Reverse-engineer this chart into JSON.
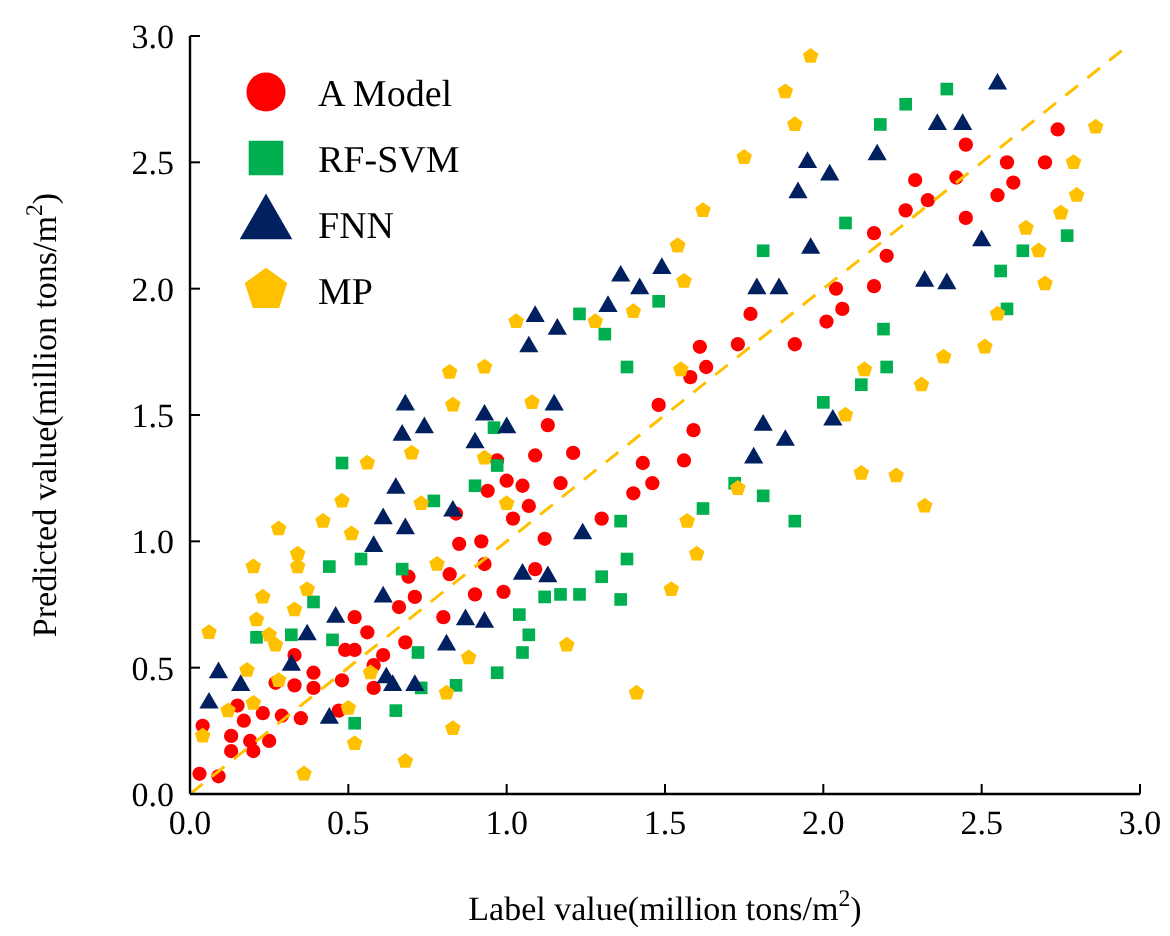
{
  "chart_data": {
    "type": "scatter",
    "xlabel": "Label value(million tons/m$^{2}$)",
    "ylabel": "Predicted value(million tons/m$^{2}$)",
    "xlim": [
      0,
      3
    ],
    "ylim": [
      0,
      3
    ],
    "xticks": [
      {
        "value": 0,
        "label": "0.0"
      },
      {
        "value": 0.5,
        "label": "0.5"
      },
      {
        "value": 1,
        "label": "1.0"
      },
      {
        "value": 1.5,
        "label": "1.5"
      },
      {
        "value": 2,
        "label": "2.0"
      },
      {
        "value": 2.5,
        "label": "2.5"
      },
      {
        "value": 3,
        "label": "3.0"
      }
    ],
    "yticks": [
      {
        "value": 0,
        "label": "0.0"
      },
      {
        "value": 0.5,
        "label": "0.5"
      },
      {
        "value": 1,
        "label": "1.0"
      },
      {
        "value": 1.5,
        "label": "1.5"
      },
      {
        "value": 2,
        "label": "2.0"
      },
      {
        "value": 2.5,
        "label": "2.5"
      },
      {
        "value": 3,
        "label": "3.0"
      }
    ],
    "grid": false,
    "legend": "top left",
    "series": [
      {
        "name": "A Model",
        "color": "#ff0000",
        "marker": "circle",
        "x": [
          0.03,
          0.09,
          0.04,
          0.13,
          0.13,
          0.19,
          0.2,
          0.25,
          0.15,
          0.17,
          0.23,
          0.29,
          0.35,
          0.27,
          0.33,
          0.39,
          0.39,
          0.33,
          0.48,
          0.47,
          0.58,
          0.58,
          0.61,
          0.49,
          0.52,
          0.52,
          0.56,
          0.68,
          0.66,
          0.71,
          0.69,
          0.8,
          0.82,
          0.9,
          0.85,
          0.92,
          0.93,
          0.84,
          0.99,
          1.09,
          1.02,
          1.07,
          0.94,
          1.0,
          1.05,
          0.97,
          1.09,
          1.13,
          1.21,
          1.17,
          1.12,
          1.3,
          1.4,
          1.46,
          1.43,
          1.48,
          1.58,
          1.63,
          1.61,
          1.73,
          1.77,
          1.91,
          2.01,
          2.04,
          2.06,
          2.16,
          2.16,
          2.2,
          2.26,
          2.29,
          2.33,
          2.42,
          2.45,
          2.45,
          2.55,
          2.58,
          2.6,
          2.7,
          2.74,
          1.59,
          1.56
        ],
        "values": [
          0.08,
          0.07,
          0.27,
          0.23,
          0.17,
          0.21,
          0.17,
          0.21,
          0.35,
          0.29,
          0.32,
          0.31,
          0.3,
          0.44,
          0.43,
          0.48,
          0.42,
          0.55,
          0.45,
          0.33,
          0.42,
          0.51,
          0.55,
          0.57,
          0.57,
          0.7,
          0.64,
          0.6,
          0.74,
          0.78,
          0.86,
          0.7,
          0.87,
          0.79,
          0.99,
          1.0,
          0.91,
          1.11,
          0.8,
          0.89,
          1.09,
          1.14,
          1.2,
          1.24,
          1.22,
          1.32,
          1.34,
          1.46,
          1.35,
          1.23,
          1.01,
          1.09,
          1.19,
          1.23,
          1.31,
          1.54,
          1.65,
          1.69,
          1.77,
          1.78,
          1.9,
          1.78,
          1.87,
          2.0,
          1.92,
          2.01,
          2.22,
          2.13,
          2.31,
          2.43,
          2.35,
          2.44,
          2.57,
          2.28,
          2.37,
          2.5,
          2.42,
          2.5,
          2.63,
          1.44,
          1.32
        ]
      },
      {
        "name": "RF-SVM",
        "color": "#00b050",
        "marker": "square",
        "x": [
          1.23,
          1.31,
          1.48,
          1.38,
          0.48,
          0.96,
          0.97,
          0.9,
          0.77,
          0.44,
          0.54,
          0.67,
          0.39,
          0.32,
          0.21,
          0.45,
          0.52,
          0.65,
          0.72,
          0.73,
          0.84,
          0.97,
          1.05,
          1.07,
          1.04,
          1.12,
          1.17,
          1.23,
          1.3,
          1.36,
          1.38,
          1.36,
          2.0,
          1.72,
          1.62,
          1.81,
          1.91,
          2.39,
          2.26,
          2.18,
          2.07,
          1.81,
          2.77,
          2.63,
          2.56,
          2.58,
          2.19,
          2.2,
          2.12
        ],
        "values": [
          1.9,
          1.82,
          1.95,
          1.69,
          1.31,
          1.45,
          1.3,
          1.22,
          1.16,
          0.9,
          0.93,
          0.89,
          0.76,
          0.63,
          0.62,
          0.61,
          0.28,
          0.33,
          0.56,
          0.42,
          0.43,
          0.48,
          0.56,
          0.63,
          0.71,
          0.78,
          0.79,
          0.79,
          0.86,
          0.77,
          0.93,
          1.08,
          1.55,
          1.23,
          1.13,
          1.18,
          1.08,
          2.79,
          2.73,
          2.65,
          2.26,
          2.15,
          2.21,
          2.15,
          2.07,
          1.92,
          1.84,
          1.69,
          1.62
        ]
      },
      {
        "name": "FNN",
        "color": "#002060",
        "marker": "triangle",
        "x": [
          1.36,
          1.49,
          1.42,
          1.32,
          1.09,
          1.16,
          1.07,
          0.68,
          0.93,
          1.15,
          2.55,
          2.36,
          2.44,
          1.95,
          2.02,
          2.17,
          1.92,
          1.96,
          1.79,
          1.86,
          2.5,
          2.32,
          2.39,
          0.74,
          0.67,
          1.0,
          0.9,
          0.65,
          0.61,
          0.68,
          0.58,
          0.83,
          1.24,
          1.05,
          1.13,
          0.61,
          0.46,
          0.37,
          0.87,
          0.93,
          0.81,
          0.62,
          0.64,
          0.71,
          0.44,
          0.32,
          0.09,
          0.16,
          0.06,
          1.81,
          1.88,
          1.78,
          2.03
        ],
        "values": [
          2.05,
          2.08,
          2.0,
          1.93,
          1.89,
          1.84,
          1.77,
          1.54,
          1.5,
          1.54,
          2.81,
          2.65,
          2.65,
          2.5,
          2.45,
          2.53,
          2.38,
          2.16,
          2.0,
          2.0,
          2.19,
          2.03,
          2.02,
          1.45,
          1.42,
          1.45,
          1.39,
          1.21,
          1.09,
          1.05,
          0.98,
          1.12,
          1.03,
          0.87,
          0.86,
          0.78,
          0.7,
          0.63,
          0.69,
          0.68,
          0.59,
          0.46,
          0.43,
          0.43,
          0.3,
          0.51,
          0.48,
          0.43,
          0.36,
          1.46,
          1.4,
          1.33,
          1.48
        ]
      },
      {
        "name": "MP",
        "color": "#ffc000",
        "x": [
          1.54,
          1.03,
          1.4,
          1.28,
          0.82,
          0.93,
          1.54,
          0.83,
          1.08,
          1.96,
          1.88,
          1.91,
          1.75,
          1.62,
          1.56,
          2.86,
          2.79,
          2.8,
          2.75,
          2.64,
          2.68,
          2.7,
          2.55,
          2.51,
          2.38,
          2.31,
          2.13,
          2.07,
          1.55,
          2.12,
          2.23,
          2.32,
          1.73,
          1.57,
          1.6,
          1.52,
          0.7,
          0.56,
          0.93,
          1.0,
          0.73,
          0.48,
          0.42,
          0.51,
          0.28,
          0.34,
          0.34,
          0.2,
          0.37,
          0.23,
          0.33,
          0.21,
          0.06,
          0.25,
          0.27,
          0.78,
          0.88,
          1.19,
          1.41,
          0.81,
          0.83,
          0.57,
          0.28,
          0.18,
          0.12,
          0.2,
          0.04,
          0.5,
          0.52,
          0.68,
          0.36
        ],
        "values": [
          2.17,
          1.87,
          1.91,
          1.87,
          1.67,
          1.69,
          2.17,
          1.54,
          1.55,
          2.92,
          2.78,
          2.65,
          2.52,
          2.31,
          2.03,
          2.64,
          2.5,
          2.37,
          2.3,
          2.24,
          2.15,
          2.02,
          1.9,
          1.77,
          1.73,
          1.62,
          1.68,
          1.5,
          1.68,
          1.27,
          1.26,
          1.14,
          1.21,
          1.08,
          0.95,
          0.81,
          1.35,
          1.31,
          1.33,
          1.15,
          1.15,
          1.16,
          1.08,
          1.03,
          1.05,
          0.95,
          0.9,
          0.9,
          0.81,
          0.78,
          0.73,
          0.69,
          0.64,
          0.63,
          0.59,
          0.91,
          0.54,
          0.59,
          0.4,
          0.4,
          0.26,
          0.48,
          0.45,
          0.49,
          0.33,
          0.36,
          0.23,
          0.34,
          0.2,
          0.13,
          0.08
        ]
      },
      {
        "type": "line",
        "color": "#ffc000",
        "line_style": "dashed",
        "x": [
          0,
          2.95
        ],
        "values": [
          0,
          2.95
        ]
      }
    ]
  }
}
